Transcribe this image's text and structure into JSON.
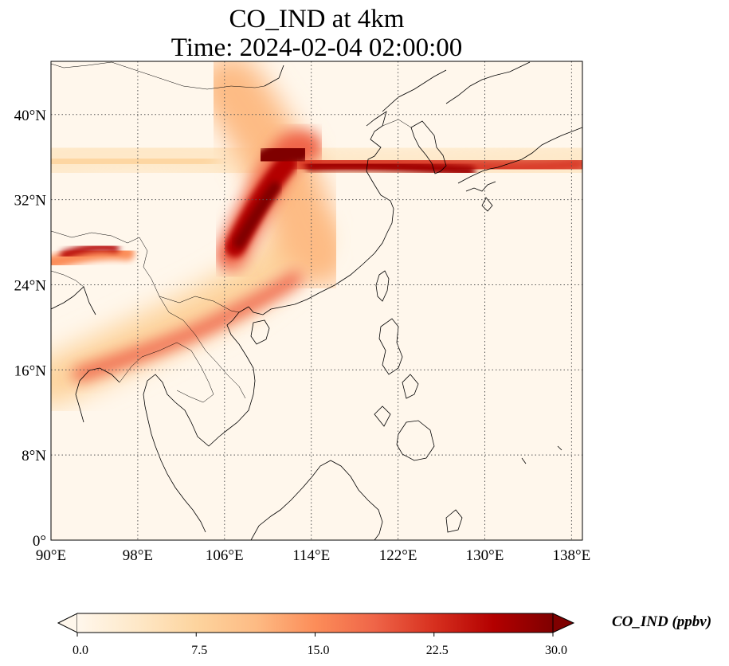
{
  "title": {
    "line1": "CO_IND at 4km",
    "line2": "Time: 2024-02-04 02:00:00"
  },
  "map": {
    "lon_range": [
      90,
      139
    ],
    "lat_range": [
      0,
      45
    ],
    "lon_ticks": [
      "90°E",
      "98°E",
      "106°E",
      "114°E",
      "122°E",
      "130°E",
      "138°E"
    ],
    "lat_ticks": [
      "0°",
      "8°N",
      "16°N",
      "24°N",
      "32°N",
      "40°N"
    ],
    "gridlines": "dotted",
    "colormap": "OrRd"
  },
  "colorbar": {
    "label": "CO_IND (ppbv)",
    "ticks": [
      "0.0",
      "7.5",
      "15.0",
      "22.5",
      "30.0"
    ],
    "range": [
      0,
      30
    ],
    "extend": "both",
    "colors": [
      "#fff7ec",
      "#fee8c8",
      "#fdd49e",
      "#fdbb84",
      "#fc8d59",
      "#ef6548",
      "#d7301f",
      "#b30000",
      "#7f0000"
    ]
  }
}
